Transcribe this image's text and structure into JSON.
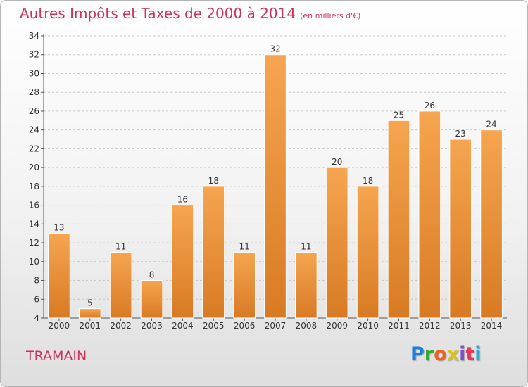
{
  "header": {
    "title": "Autres Impôts et Taxes de 2000 à 2014",
    "subtitle": "(en milliers d'€)"
  },
  "footer": {
    "commune": "TRAMAIN",
    "brand": "Proxiti"
  },
  "colors": {
    "title": "#d0305a",
    "bar_light": "#f6a550",
    "bar_dark": "#d87a24",
    "grid": "#c8c8c8"
  },
  "chart_data": {
    "type": "bar",
    "title": "Autres Impôts et Taxes de 2000 à 2014",
    "subtitle": "(en milliers d'€)",
    "categories": [
      "2000",
      "2001",
      "2002",
      "2003",
      "2004",
      "2005",
      "2006",
      "2007",
      "2008",
      "2009",
      "2010",
      "2011",
      "2012",
      "2013",
      "2014"
    ],
    "values": [
      13,
      5,
      11,
      8,
      16,
      18,
      11,
      32,
      11,
      20,
      18,
      25,
      26,
      23,
      24
    ],
    "ylim": [
      4,
      34
    ],
    "yticks": [
      4,
      6,
      8,
      10,
      12,
      14,
      16,
      18,
      20,
      22,
      24,
      26,
      28,
      30,
      32,
      34
    ],
    "grid": true,
    "legend": "none",
    "xlabel": "",
    "ylabel": ""
  }
}
